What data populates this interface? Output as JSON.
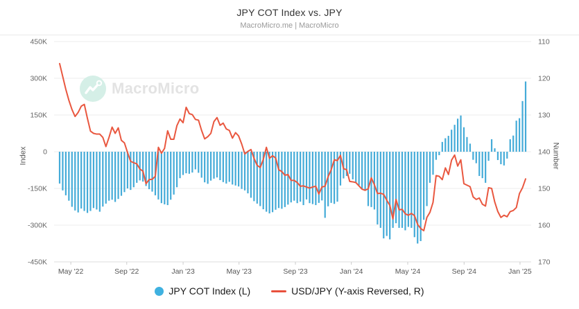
{
  "header": {
    "title": "JPY COT Index vs. JPY",
    "subtitle": "MacroMicro.me | MacroMicro"
  },
  "watermark": {
    "text": "MacroMicro"
  },
  "legend": [
    {
      "label": "JPY COT Index (L)",
      "swatch": "dot",
      "color": "#3fb1e0"
    },
    {
      "label": "USD/JPY (Y-axis Reversed, R)",
      "swatch": "line",
      "color": "#e8503c"
    }
  ],
  "colors": {
    "bar": "#44abd8",
    "line": "#e9573f",
    "grid": "#ececec",
    "axis_line": "#dddddd",
    "tick_text": "#666666",
    "x_text": "#555555",
    "watermark_circle": "#d5efe7",
    "watermark_glyph": "#ffffff"
  },
  "chart_data": {
    "type": "bar+line combo, weekly",
    "title": "JPY COT Index vs. JPY",
    "left_axis": {
      "title": "Index",
      "tick_labels": [
        "450K",
        "300K",
        "150K",
        "0",
        "-150K",
        "-300K",
        "-450K"
      ],
      "tick_values": [
        450,
        300,
        150,
        0,
        -150,
        -300,
        -450
      ],
      "unit": "thousands"
    },
    "right_axis": {
      "title": "Number",
      "tick_labels": [
        "110",
        "120",
        "130",
        "140",
        "150",
        "160",
        "170"
      ],
      "tick_values": [
        110,
        120,
        130,
        140,
        150,
        160,
        170
      ],
      "reversed": true
    },
    "x_ticks": [
      {
        "label": "May '22",
        "pct": 2.4
      },
      {
        "label": "Sep '22",
        "pct": 14.4
      },
      {
        "label": "Jan '23",
        "pct": 26.5
      },
      {
        "label": "May '23",
        "pct": 38.5
      },
      {
        "label": "Sep '23",
        "pct": 50.6
      },
      {
        "label": "Jan '24",
        "pct": 62.6
      },
      {
        "label": "May '24",
        "pct": 74.7
      },
      {
        "label": "Sep '24",
        "pct": 86.8
      },
      {
        "label": "Jan '25",
        "pct": 98.8
      }
    ],
    "series": [
      {
        "name": "JPY COT Index (L)",
        "type": "bar",
        "axis": "left",
        "unit": "thousands",
        "values": [
          -130,
          -158,
          -178,
          -200,
          -225,
          -240,
          -248,
          -232,
          -242,
          -250,
          -242,
          -230,
          -236,
          -245,
          -224,
          -212,
          -200,
          -196,
          -205,
          -193,
          -180,
          -165,
          -150,
          -156,
          -145,
          -127,
          -117,
          -122,
          -140,
          -153,
          -163,
          -178,
          -195,
          -210,
          -215,
          -218,
          -196,
          -175,
          -145,
          -108,
          -95,
          -88,
          -90,
          -85,
          -72,
          -86,
          -106,
          -125,
          -131,
          -118,
          -110,
          -105,
          -116,
          -124,
          -130,
          -123,
          -134,
          -138,
          -142,
          -152,
          -158,
          -170,
          -188,
          -202,
          -212,
          -222,
          -235,
          -245,
          -252,
          -247,
          -237,
          -230,
          -233,
          -226,
          -216,
          -207,
          -200,
          -210,
          -204,
          -218,
          -195,
          -210,
          -214,
          -218,
          -209,
          -199,
          -270,
          -223,
          -209,
          -213,
          -204,
          -138,
          -109,
          -99,
          -90,
          -113,
          -127,
          -137,
          -151,
          -160,
          -222,
          -226,
          -236,
          -297,
          -311,
          -354,
          -344,
          -358,
          -311,
          -292,
          -311,
          -311,
          -321,
          -307,
          -311,
          -349,
          -375,
          -365,
          -278,
          -222,
          -127,
          -94,
          -33,
          -14,
          40,
          55,
          65,
          90,
          110,
          135,
          148,
          100,
          60,
          33,
          -33,
          -47,
          -99,
          -108,
          -127,
          -37,
          51,
          14,
          -34,
          -51,
          -56,
          -28,
          51,
          66,
          127,
          137,
          207,
          287
        ]
      },
      {
        "name": "USD/JPY (Y-axis Reversed, R)",
        "type": "line",
        "axis": "right",
        "values": [
          116.0,
          119.5,
          123.0,
          126.0,
          128.5,
          130.4,
          129.3,
          127.6,
          127.1,
          130.9,
          134.4,
          135.0,
          135.2,
          135.2,
          136.1,
          138.6,
          136.1,
          133.3,
          135.0,
          133.5,
          136.9,
          137.6,
          140.2,
          142.6,
          143.0,
          143.3,
          144.7,
          145.3,
          148.7,
          147.6,
          147.5,
          146.7,
          138.8,
          140.4,
          139.1,
          134.3,
          136.6,
          136.6,
          132.9,
          131.1,
          132.1,
          127.9,
          129.6,
          129.9,
          131.2,
          131.4,
          134.2,
          136.5,
          135.9,
          135.0,
          131.8,
          130.7,
          132.8,
          132.2,
          133.8,
          134.2,
          136.3,
          134.8,
          135.7,
          137.9,
          140.6,
          139.9,
          139.4,
          141.8,
          143.7,
          144.3,
          142.1,
          138.8,
          141.8,
          141.1,
          141.7,
          144.9,
          145.4,
          146.4,
          146.2,
          147.8,
          147.8,
          148.4,
          149.4,
          149.3,
          149.6,
          149.9,
          149.6,
          149.4,
          151.5,
          149.6,
          149.4,
          146.8,
          144.9,
          142.2,
          142.4,
          141.0,
          144.6,
          144.9,
          148.1,
          148.2,
          148.4,
          149.3,
          150.2,
          150.5,
          150.1,
          147.1,
          149.0,
          151.4,
          151.3,
          151.6,
          153.2,
          154.6,
          158.3,
          153.0,
          155.8,
          155.7,
          156.9,
          157.3,
          156.8,
          157.4,
          159.8,
          160.9,
          161.5,
          157.9,
          156.5,
          153.8,
          146.5,
          146.7,
          147.6,
          144.4,
          146.2,
          142.3,
          140.9,
          143.9,
          142.2,
          148.7,
          149.1,
          149.5,
          152.3,
          153.0,
          152.6,
          154.3,
          154.8,
          149.8,
          150.0,
          153.7,
          156.3,
          157.9,
          157.3,
          157.7,
          156.3,
          156.0,
          155.2,
          151.4,
          149.8,
          147.4
        ]
      }
    ]
  }
}
